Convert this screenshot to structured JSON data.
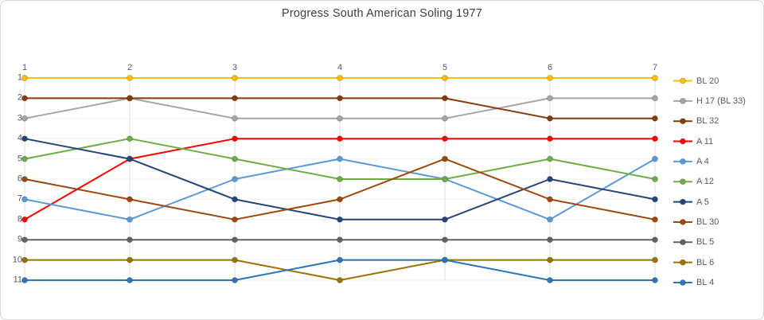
{
  "window": {
    "background": "#ffffff",
    "border_color": "#d7d7d7"
  },
  "colors": {
    "title_text": "#404040",
    "axis_text": "#595959",
    "legend_text": "#595959",
    "grid_vertical": "#e0e0e0",
    "grid_horizontal": "#f2f2f2",
    "marker_rim": "rgba(0,0,0,0.2)"
  },
  "chart_data": {
    "type": "line",
    "subtype": "bump-rank-progress",
    "title": "Progress South American Soling 1977",
    "xlabel": "",
    "ylabel": "",
    "x_ticks": [
      "1",
      "2",
      "3",
      "4",
      "5",
      "6",
      "7"
    ],
    "y_ticks": [
      "1",
      "2",
      "3",
      "4",
      "5",
      "6",
      "7",
      "8",
      "9",
      "10",
      "11"
    ],
    "y_axis_inverted": true,
    "x_axis_position": "top",
    "grid": true,
    "legend_position": "right",
    "series": [
      {
        "name": "BL 20",
        "color": "#FFC000",
        "values": [
          1,
          1,
          1,
          1,
          1,
          1,
          1
        ]
      },
      {
        "name": "H 17 (BL 33)",
        "color": "#A5A5A5",
        "values": [
          3,
          2,
          3,
          3,
          3,
          2,
          2
        ]
      },
      {
        "name": "BL 32",
        "color": "#843C0C",
        "values": [
          2,
          2,
          2,
          2,
          2,
          3,
          3
        ]
      },
      {
        "name": "A 11",
        "color": "#FF0000",
        "values": [
          8,
          5,
          4,
          4,
          4,
          4,
          4
        ]
      },
      {
        "name": "A 4",
        "color": "#5B9BD5",
        "values": [
          7,
          8,
          6,
          5,
          6,
          8,
          5
        ]
      },
      {
        "name": "A 12",
        "color": "#70AD47",
        "values": [
          5,
          4,
          5,
          6,
          6,
          5,
          6
        ]
      },
      {
        "name": "A 5",
        "color": "#264478",
        "values": [
          4,
          5,
          7,
          8,
          8,
          6,
          7
        ]
      },
      {
        "name": "BL 30",
        "color": "#9E480E",
        "values": [
          6,
          7,
          8,
          7,
          5,
          7,
          8
        ]
      },
      {
        "name": "BL 5",
        "color": "#636363",
        "values": [
          9,
          9,
          9,
          9,
          9,
          9,
          9
        ]
      },
      {
        "name": "BL 6",
        "color": "#997300",
        "values": [
          10,
          10,
          10,
          11,
          10,
          10,
          10
        ]
      },
      {
        "name": "BL 4",
        "color": "#2E75B6",
        "values": [
          11,
          11,
          11,
          10,
          10,
          11,
          11
        ]
      }
    ]
  }
}
